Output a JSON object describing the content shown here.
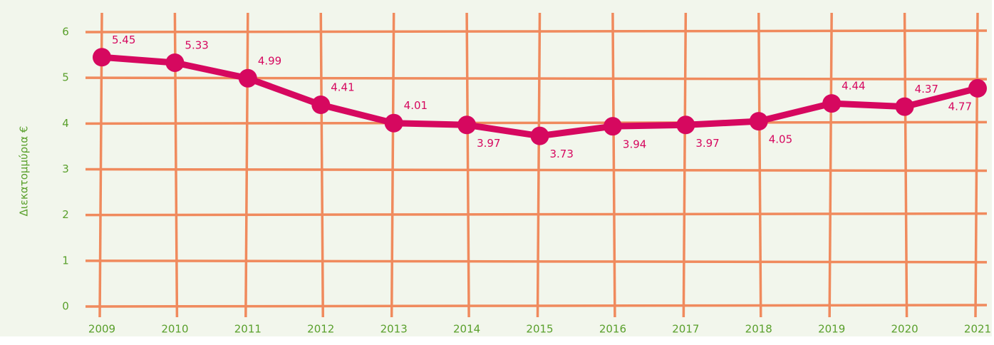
{
  "chart_data": {
    "type": "line",
    "y_axis_label": "Διεκατομμύρια €",
    "categories": [
      "2009",
      "2010",
      "2011",
      "2012",
      "2013",
      "2014",
      "2015",
      "2016",
      "2017",
      "2018",
      "2019",
      "2020",
      "2021"
    ],
    "series": [
      {
        "name": "Διεκατομμύρια €",
        "color": "#d6085f",
        "values": [
          5.45,
          5.33,
          4.99,
          4.41,
          4.01,
          3.97,
          3.73,
          3.94,
          3.97,
          4.05,
          4.44,
          4.37,
          4.77
        ]
      }
    ],
    "ylim": [
      0,
      6
    ],
    "yticks": [
      0,
      1,
      2,
      3,
      4,
      5,
      6
    ],
    "grid": true,
    "grid_color": "#f08a5d"
  }
}
